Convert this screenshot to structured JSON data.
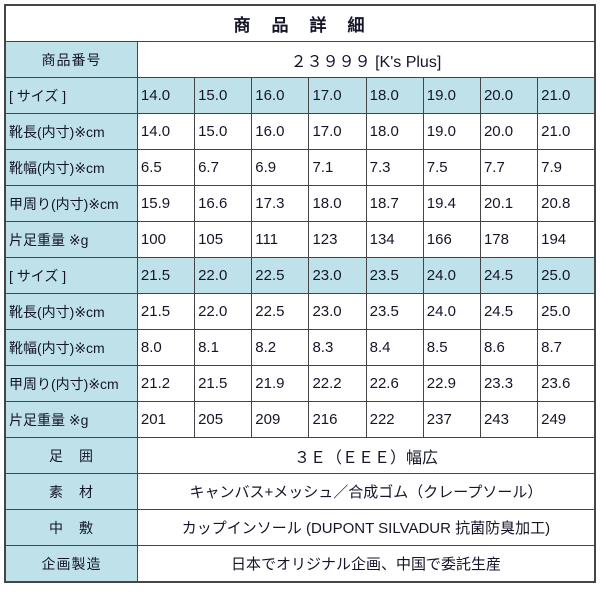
{
  "title": "商　品　詳　細",
  "colors": {
    "header_bg": "#bfe2ea",
    "border": "#454545",
    "text": "#15152a"
  },
  "product_number": {
    "label": "商品番号",
    "value": "２３９９９ [K's Plus]"
  },
  "size_table": {
    "rows": [
      {
        "label": "[ サイズ ]",
        "values": [
          "14.0",
          "15.0",
          "16.0",
          "17.0",
          "18.0",
          "19.0",
          "20.0",
          "21.0"
        ]
      },
      {
        "label": "靴長(内寸)※cm",
        "values": [
          "14.0",
          "15.0",
          "16.0",
          "17.0",
          "18.0",
          "19.0",
          "20.0",
          "21.0"
        ]
      },
      {
        "label": "靴幅(内寸)※cm",
        "values": [
          "6.5",
          "6.7",
          "6.9",
          "7.1",
          "7.3",
          "7.5",
          "7.7",
          "7.9"
        ]
      },
      {
        "label": "甲周り(内寸)※cm",
        "values": [
          "15.9",
          "16.6",
          "17.3",
          "18.0",
          "18.7",
          "19.4",
          "20.1",
          "20.8"
        ]
      },
      {
        "label": "片足重量 ※g",
        "values": [
          "100",
          "105",
          "111",
          "123",
          "134",
          "166",
          "178",
          "194"
        ]
      },
      {
        "label": "[ サイズ ]",
        "values": [
          "21.5",
          "22.0",
          "22.5",
          "23.0",
          "23.5",
          "24.0",
          "24.5",
          "25.0"
        ]
      },
      {
        "label": "靴長(内寸)※cm",
        "values": [
          "21.5",
          "22.0",
          "22.5",
          "23.0",
          "23.5",
          "24.0",
          "24.5",
          "25.0"
        ]
      },
      {
        "label": "靴幅(内寸)※cm",
        "values": [
          "8.0",
          "8.1",
          "8.2",
          "8.3",
          "8.4",
          "8.5",
          "8.6",
          "8.7"
        ]
      },
      {
        "label": "甲周り(内寸)※cm",
        "values": [
          "21.2",
          "21.5",
          "21.9",
          "22.2",
          "22.6",
          "22.9",
          "23.3",
          "23.6"
        ]
      },
      {
        "label": "片足重量 ※g",
        "values": [
          "201",
          "205",
          "209",
          "216",
          "222",
          "237",
          "243",
          "249"
        ]
      }
    ]
  },
  "info_rows": [
    {
      "label": "足　囲",
      "value": "３Ｅ（ＥＥＥ）幅広"
    },
    {
      "label": "素　材",
      "value": "キャンバス+メッシュ／合成ゴム（クレープソール）"
    },
    {
      "label": "中　敷",
      "value": "カップインソール (DUPONT SILVADUR 抗菌防臭加工)"
    },
    {
      "label": "企画製造",
      "value": "日本でオリジナル企画、中国で委託生産"
    }
  ]
}
